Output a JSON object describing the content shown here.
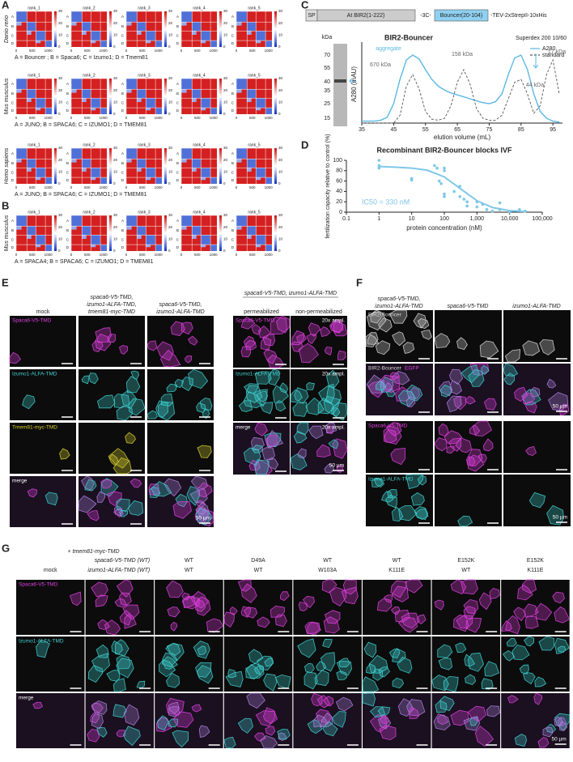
{
  "panel_labels": [
    "A",
    "B",
    "C",
    "D",
    "E",
    "F",
    "G"
  ],
  "panel_a": {
    "species": [
      "Danio rerio",
      "Mus musculus",
      "Homo sapiens"
    ],
    "ranks": [
      "rank_1",
      "rank_2",
      "rank_3",
      "rank_4",
      "rank_5"
    ],
    "chain_labels": [
      "A",
      "B",
      "C",
      "D"
    ],
    "x_ticks": [
      0,
      500,
      1000
    ],
    "colorbar_ticks": [
      0,
      10,
      20,
      30
    ],
    "legends": [
      "A = Bouncer ; B = Spaca6; C = Izumo1; D = Tmem81",
      "A = JUNO; B = SPACA6; C = IZUMO1; D = TMEM81",
      "A = JUNO; B = SPACA6; C = IZUMO1; D = TMEM81"
    ]
  },
  "panel_b": {
    "species": "Mus musculus",
    "legend": "A = SPACA4; B = SPACA6; C = IZUMO1; D = TMEM81"
  },
  "panel_c": {
    "construct": [
      "SP",
      "At BIR2(1-222)",
      "-3C-",
      "Bouncer(20-104)",
      "-TEV-2xStrepII-10xHis"
    ],
    "gel_unit": "kDa",
    "gel_markers": [
      70,
      55,
      40,
      35,
      25,
      15
    ]
  },
  "chart_data": [
    {
      "type": "line",
      "title": "BIR2-Bouncer",
      "subtitle": "Superdex 200 10/60",
      "x_label": "elution volume (mL)",
      "y_label": "A280 (mAU)",
      "xlim": [
        35,
        98
      ],
      "xticks": [
        35,
        45,
        55,
        65,
        75,
        85,
        95
      ],
      "ylim": [
        0,
        80
      ],
      "x": [
        35,
        37,
        39,
        41,
        43,
        45,
        47,
        49,
        51,
        53,
        55,
        57,
        59,
        61,
        63,
        65,
        67,
        69,
        71,
        73,
        75,
        77,
        79,
        81,
        83,
        85,
        87,
        89,
        91,
        93,
        95,
        97
      ],
      "series": [
        {
          "name": "A280",
          "color": "#5bb8e6",
          "values": [
            2,
            2,
            2,
            3,
            6,
            20,
            45,
            65,
            70,
            66,
            55,
            45,
            38,
            34,
            31,
            29,
            27,
            25,
            23,
            21,
            20,
            22,
            30,
            50,
            67,
            70,
            55,
            30,
            12,
            5,
            2,
            1
          ]
        },
        {
          "name": "standard",
          "color": "#555555",
          "dashed": true,
          "values": [
            0,
            0,
            0,
            0,
            0,
            0,
            8,
            38,
            50,
            35,
            12,
            4,
            3,
            5,
            18,
            42,
            55,
            40,
            15,
            5,
            3,
            3,
            8,
            25,
            42,
            45,
            30,
            10,
            18,
            50,
            65,
            30
          ]
        }
      ],
      "annotations": [
        "aggregate",
        "670 kDa",
        "158 kDa",
        "44 kDa",
        "17 kDa"
      ]
    },
    {
      "type": "scatter",
      "title": "Recombinant BIR2-Bouncer blocks IVF",
      "x_label": "protein concentration (nM)",
      "y_label": "fertilization capacity relative to control (%)",
      "xscale": "log",
      "xlim": [
        0.1,
        100000
      ],
      "xticks": [
        0.1,
        1,
        10,
        100,
        {
          "value": 1000,
          "label": "1,000"
        },
        {
          "value": 10000,
          "label": "10,000"
        },
        {
          "value": 100000,
          "label": "100,000"
        }
      ],
      "ylim": [
        0,
        100
      ],
      "yticks": [
        0,
        20,
        40,
        60,
        80,
        100
      ],
      "color": "#7ec8e8",
      "x": [
        1,
        1,
        1,
        10,
        10,
        50,
        60,
        70,
        80,
        100,
        100,
        100,
        100,
        200,
        300,
        300,
        400,
        500,
        500,
        1000,
        1000,
        1500,
        2000,
        3000,
        5000,
        5000,
        10000,
        20000,
        30000
      ],
      "values": [
        100,
        90,
        85,
        65,
        62,
        90,
        85,
        60,
        55,
        85,
        80,
        35,
        30,
        40,
        50,
        30,
        25,
        20,
        12,
        20,
        10,
        15,
        5,
        2,
        18,
        5,
        0,
        5,
        2
      ],
      "fit": {
        "x": [
          1,
          3,
          10,
          30,
          100,
          300,
          1000,
          3000,
          10000,
          30000
        ],
        "values": [
          88,
          87,
          85,
          81,
          68,
          46,
          22,
          9,
          3,
          1
        ]
      },
      "annotation": "IC50 = 330 nM"
    }
  ],
  "panel_e": {
    "columns_left": [
      [
        "mock"
      ],
      [
        "spaca6-V5-TMD,",
        "izumo1-ALFA-TMD,",
        "tmem81-myc-TMD"
      ],
      [
        "spaca6-V5-TMD,",
        "izumo1-ALFA-TMD"
      ]
    ],
    "rows_left": [
      "Spaca6-V5-TMD",
      "Izumo1-ALFA-TMD",
      "Tmem81-myc-TMD",
      "merge"
    ],
    "group_right": "spaca6-V5-TMD, izumo1-ALFA-TMD",
    "columns_right": [
      "permeabilized",
      "non-permeabilized"
    ],
    "rows_right": [
      "Spaca6-V5-TMD",
      "Izumo1-ALFA-TMD",
      "merge"
    ],
    "amplification": "20x ampl.",
    "scale_bar": "50 µm"
  },
  "panel_f": {
    "columns": [
      [
        "spaca6-V5-TMD,",
        "izumo1-ALFA-TMD"
      ],
      [
        "spaca6-V5-TMD"
      ],
      [
        "izumo1-ALFA-TMD"
      ]
    ],
    "rows": [
      "BIR2-Bouncer",
      "BIR2-Bouncer",
      "Spaca6-V5-TMD",
      "Izumo1-ALFA-TMD"
    ],
    "overlay_label": "EGFP",
    "scale_bar": "50 µm"
  },
  "panel_g": {
    "common": "+ tmem81-myc-TMD",
    "row_headers": [
      "spaca6-V5-TMD (WT)",
      "izumo1-ALFA-TMD (WT)"
    ],
    "mock": "mock",
    "spaca6_variants": [
      "WT",
      "D49A",
      "WT",
      "WT",
      "E152K",
      "E152K"
    ],
    "izumo1_variants": [
      "WT",
      "WT",
      "W103A",
      "K111E",
      "WT",
      "K111E"
    ],
    "rows": [
      "Spaca6-V5-TMD",
      "Izumo1-ALFA-TMD",
      "merge"
    ],
    "scale_bar": "50 µm"
  }
}
